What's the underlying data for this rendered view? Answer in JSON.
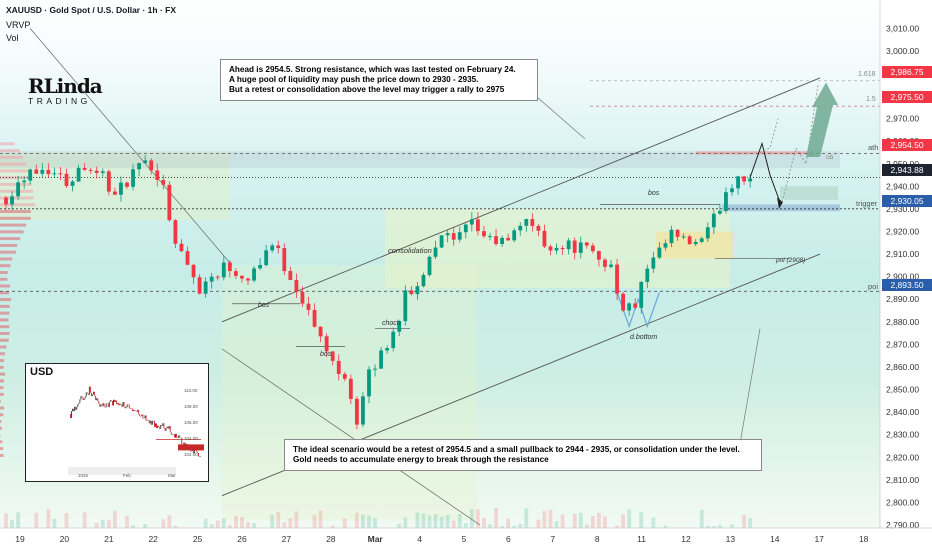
{
  "header": {
    "title": "XAUUSD · Gold Spot / U.S. Dollar · 1h · FX",
    "indicator_1": "VRVP",
    "indicator_2": "Vol"
  },
  "logo": {
    "line1": "RLinda",
    "line2": "TRADING"
  },
  "annotations": {
    "top_note": [
      "Ahead is 2954.5. Strong resistance, which was last tested on February 24.",
      "A huge pool of liquidity may push the price down to 2930 - 2935.",
      "But a retest or consolidation above the level may trigger a rally to 2975"
    ],
    "bottom_note": [
      "The ideal scenario would be a retest of 2954.5 and a small pullback to 2944 - 2935, or consolidation under the level.",
      "Gold needs to accumulate energy to break through the resistance"
    ],
    "labels": {
      "bos_1": "bos",
      "bos_2": "bos",
      "bos_3": "bos",
      "choch": "choch",
      "consolidation": "consolidation",
      "d_bottom": "d.bottom",
      "poi_2908": "poi (2908)",
      "ob": "ob",
      "fib_1618": "1.618",
      "fib_15": "1.5"
    }
  },
  "levels": {
    "ath": "ath",
    "trigger": "trigger",
    "poi": "poi"
  },
  "price_badges": {
    "fib_1618": "2,986.75",
    "fib_15": "2,975.50",
    "ath": "2,954.50",
    "current": "2,943.88",
    "trigger": "2,930.05",
    "poi": "2,893.50"
  },
  "colors": {
    "up": "#089981",
    "down": "#f23645",
    "red_badge": "#f23645",
    "dark_badge": "#1e2330",
    "blue_badge": "#2a5ea8"
  },
  "inset": {
    "title": "USD",
    "x_labels": [
      "2025",
      "Feb",
      "Mar"
    ],
    "y_labels": [
      "110.00",
      "108.00",
      "106.00",
      "104.00",
      "102.00"
    ]
  },
  "chart_data": {
    "type": "candlestick",
    "symbol": "XAUUSD",
    "timeframe": "1h",
    "ylim": [
      2790,
      3015
    ],
    "y_ticks": [
      3010,
      3000,
      2990,
      2980,
      2970,
      2960,
      2950,
      2940,
      2930,
      2920,
      2910,
      2900,
      2890,
      2880,
      2870,
      2860,
      2850,
      2840,
      2830,
      2820,
      2810,
      2800,
      2790
    ],
    "y_tick_labels": [
      "3,010.00",
      "3,000.00",
      "2,990.00",
      "2,980.00",
      "2,970.00",
      "2,960.00",
      "2,950.00",
      "2,940.00",
      "2,930.00",
      "2,920.00",
      "2,910.00",
      "2,900.00",
      "2,890.00",
      "2,880.00",
      "2,870.00",
      "2,860.00",
      "2,850.00",
      "2,840.00",
      "2,830.00",
      "2,820.00",
      "2,810.00",
      "2,800.00",
      "2,790.00"
    ],
    "x_tick_labels": [
      "19",
      "20",
      "21",
      "22",
      "25",
      "26",
      "27",
      "28",
      "Mar",
      "4",
      "5",
      "6",
      "7",
      "8",
      "11",
      "12",
      "13",
      "14",
      "17",
      "18"
    ],
    "key_prices": {
      "fib_1618": 2986.75,
      "fib_15": 2975.5,
      "ath": 2954.5,
      "current": 2943.88,
      "trigger": 2930.05,
      "poi": 2893.5,
      "poi_2908": 2908
    },
    "path_anchors": [
      [
        0,
        2935
      ],
      [
        4,
        2948
      ],
      [
        7,
        2948
      ],
      [
        10,
        2942
      ],
      [
        13,
        2950
      ],
      [
        16,
        2945
      ],
      [
        18,
        2935
      ],
      [
        21,
        2946
      ],
      [
        24,
        2950
      ],
      [
        26,
        2940
      ],
      [
        28,
        2915
      ],
      [
        32,
        2895
      ],
      [
        36,
        2905
      ],
      [
        40,
        2900
      ],
      [
        44,
        2915
      ],
      [
        46,
        2905
      ],
      [
        49,
        2890
      ],
      [
        52,
        2872
      ],
      [
        54,
        2862
      ],
      [
        56,
        2857
      ],
      [
        58,
        2836
      ],
      [
        60,
        2856
      ],
      [
        62,
        2866
      ],
      [
        64,
        2875
      ],
      [
        66,
        2891
      ],
      [
        68,
        2895
      ],
      [
        70,
        2910
      ],
      [
        72,
        2920
      ],
      [
        74,
        2915
      ],
      [
        77,
        2923
      ],
      [
        80,
        2916
      ],
      [
        83,
        2915
      ],
      [
        86,
        2927
      ],
      [
        89,
        2914
      ],
      [
        92,
        2914
      ],
      [
        95,
        2913
      ],
      [
        98,
        2908
      ],
      [
        100,
        2905
      ],
      [
        102,
        2884
      ],
      [
        104,
        2888
      ],
      [
        106,
        2903
      ],
      [
        108,
        2910
      ],
      [
        110,
        2919
      ],
      [
        112,
        2915
      ],
      [
        115,
        2915
      ],
      [
        117,
        2925
      ],
      [
        119,
        2938
      ],
      [
        121,
        2945
      ],
      [
        123,
        2944
      ]
    ]
  }
}
